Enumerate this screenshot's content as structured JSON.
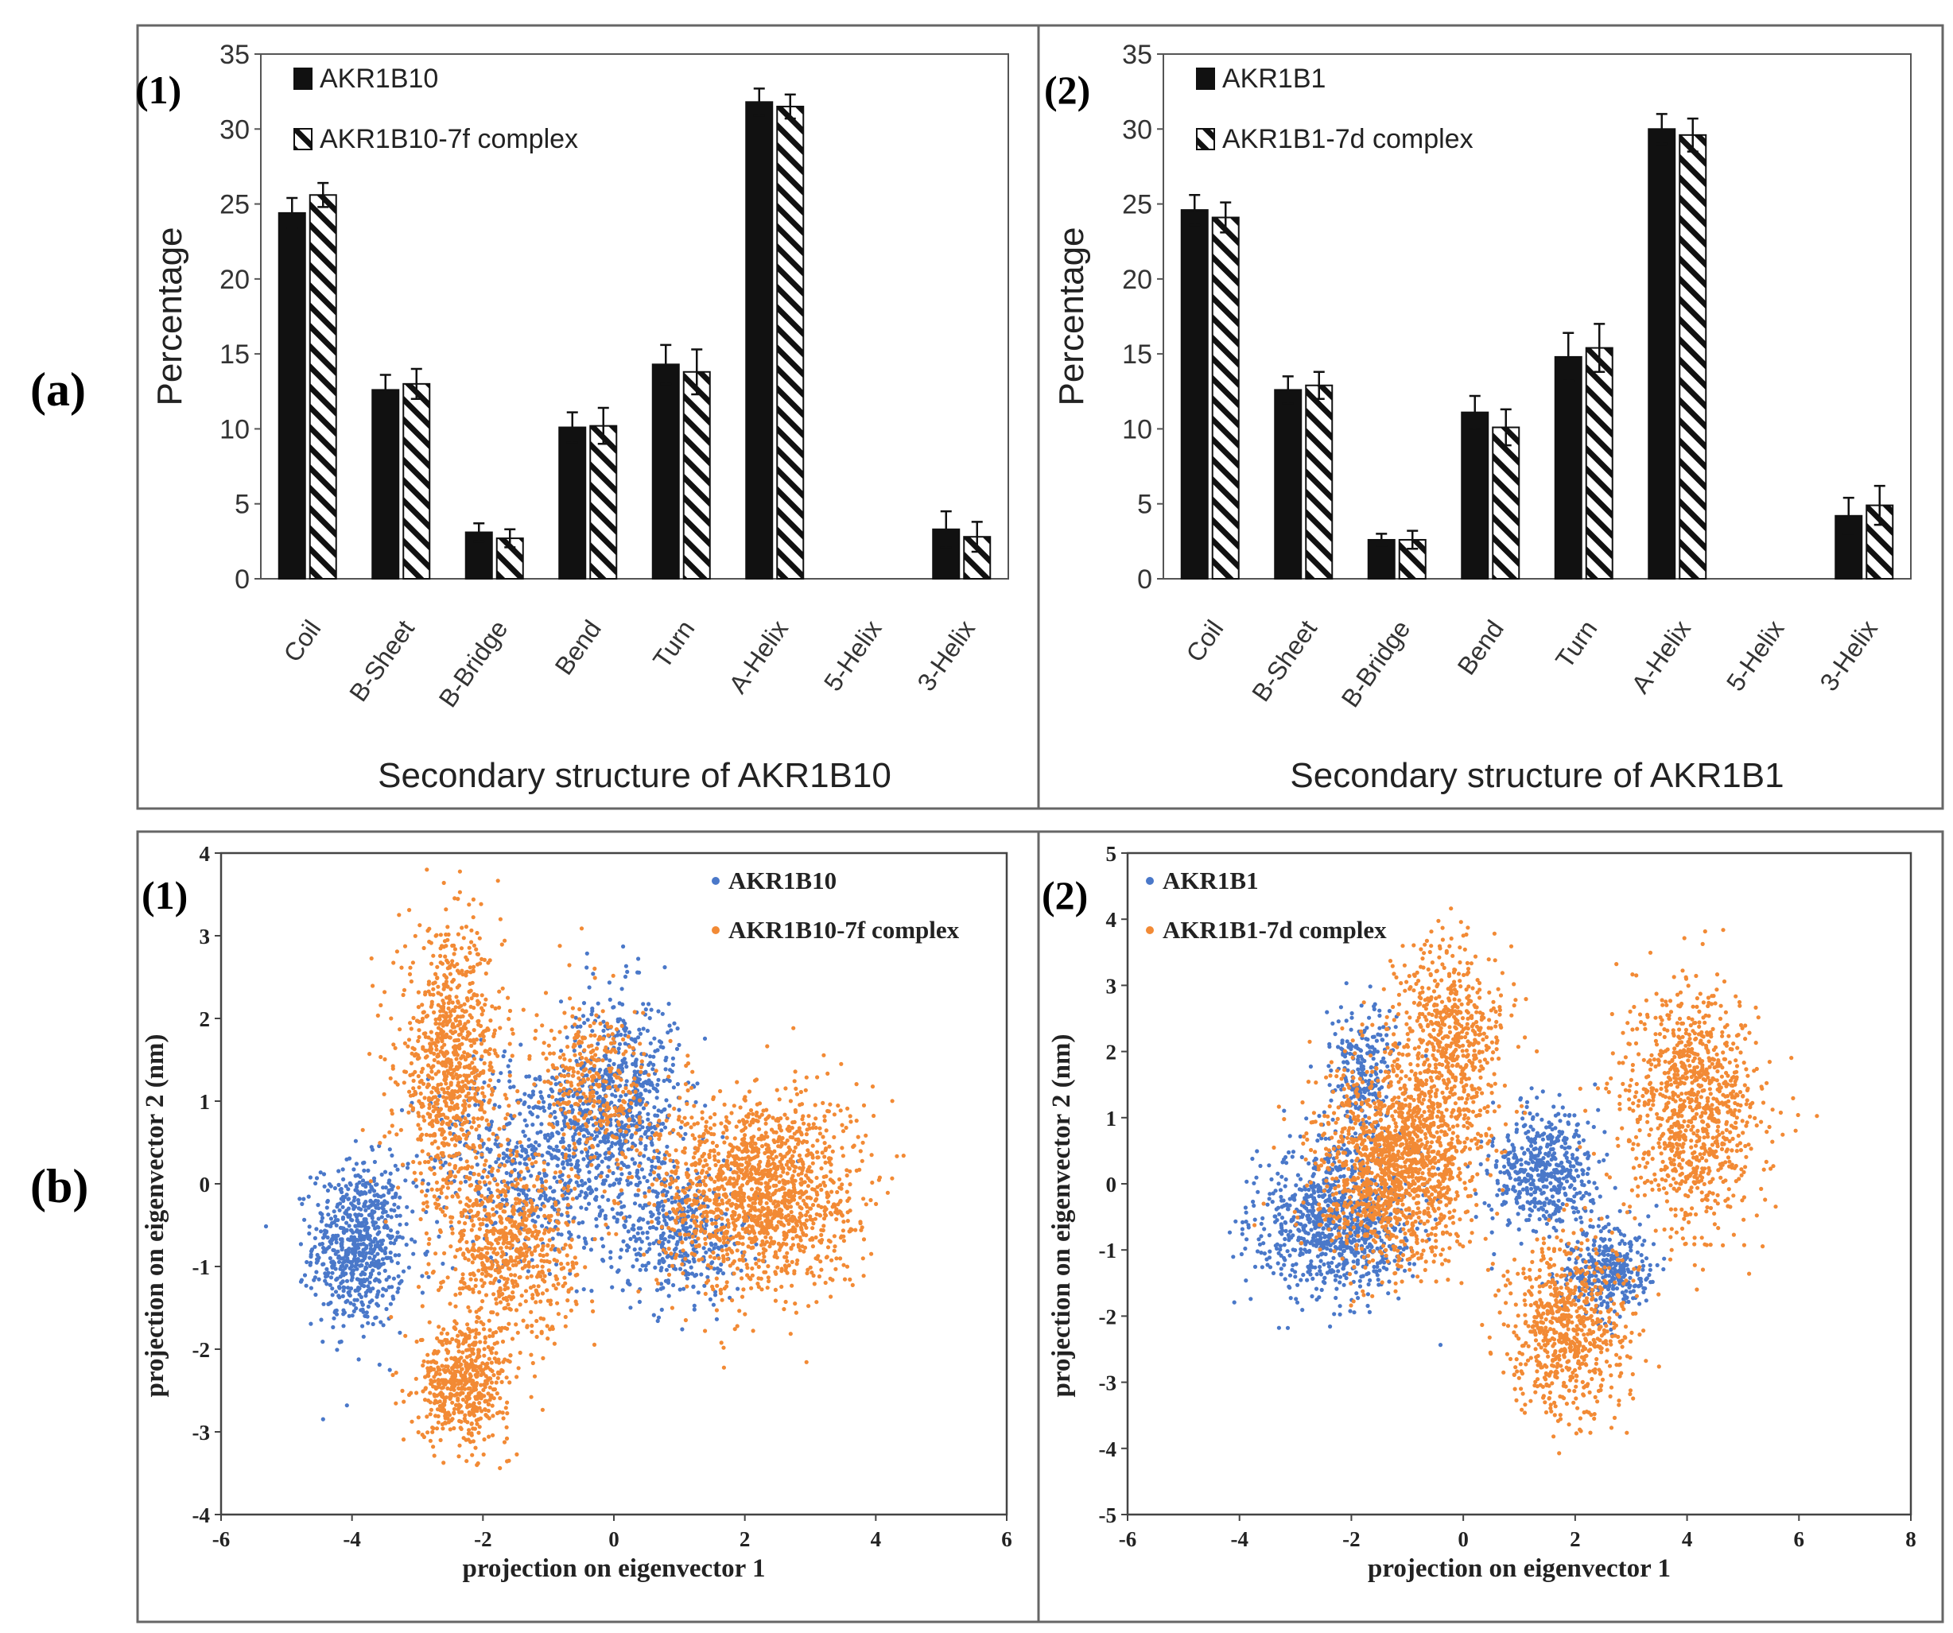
{
  "figure": {
    "row_a_label": "(a)",
    "row_b_label": "(b)"
  },
  "colors": {
    "bar_fill": "#111111",
    "hatch_stroke": "#111111",
    "frame": "#666666",
    "axis": "#444444",
    "apo_points": "#4a78c9",
    "complex_points": "#f28a35"
  },
  "chart_data": [
    {
      "type": "bar",
      "panel": "(1)",
      "title": "",
      "xlabel": "Secondary structure of AKR1B10",
      "ylabel": "Percentage",
      "ylim": [
        0,
        35
      ],
      "yticks": [
        "0",
        "5",
        "10",
        "15",
        "20",
        "25",
        "30",
        "35"
      ],
      "categories": [
        "Coil",
        "B-Sheet",
        "B-Bridge",
        "Bend",
        "Turn",
        "A-Helix",
        "5-Helix",
        "3-Helix"
      ],
      "series": [
        {
          "name": "AKR1B10",
          "style": "solid",
          "values": [
            24.4,
            12.6,
            3.1,
            10.1,
            14.3,
            31.8,
            0,
            3.3
          ],
          "errors": [
            1.0,
            1.0,
            0.6,
            1.0,
            1.3,
            0.9,
            0,
            1.2
          ]
        },
        {
          "name": "AKR1B10-7f complex",
          "style": "hatched",
          "values": [
            25.6,
            13.0,
            2.7,
            10.2,
            13.8,
            31.5,
            0,
            2.8
          ],
          "errors": [
            0.8,
            1.0,
            0.6,
            1.2,
            1.5,
            0.8,
            0,
            1.0
          ]
        }
      ]
    },
    {
      "type": "bar",
      "panel": "(2)",
      "title": "",
      "xlabel": "Secondary structure of AKR1B1",
      "ylabel": "Percentage",
      "ylim": [
        0,
        35
      ],
      "yticks": [
        "0",
        "5",
        "10",
        "15",
        "20",
        "25",
        "30",
        "35"
      ],
      "categories": [
        "Coil",
        "B-Sheet",
        "B-Bridge",
        "Bend",
        "Turn",
        "A-Helix",
        "5-Helix",
        "3-Helix"
      ],
      "series": [
        {
          "name": "AKR1B1",
          "style": "solid",
          "values": [
            24.6,
            12.6,
            2.6,
            11.1,
            14.8,
            30.0,
            0,
            4.2
          ],
          "errors": [
            1.0,
            0.9,
            0.4,
            1.1,
            1.6,
            1.0,
            0,
            1.2
          ]
        },
        {
          "name": "AKR1B1-7d complex",
          "style": "hatched",
          "values": [
            24.1,
            12.9,
            2.6,
            10.1,
            15.4,
            29.6,
            0,
            4.9
          ],
          "errors": [
            1.0,
            0.9,
            0.6,
            1.2,
            1.6,
            1.1,
            0,
            1.3
          ]
        }
      ]
    },
    {
      "type": "scatter",
      "panel": "(1)",
      "title": "",
      "xlabel": "projection on eigenvector 1",
      "ylabel": "projection on eigenvector 2 (nm)",
      "xlim": [
        -6,
        6
      ],
      "ylim": [
        -4,
        4
      ],
      "xticks": [
        "-6",
        "-4",
        "-2",
        "0",
        "2",
        "4",
        "6"
      ],
      "yticks": [
        "-4",
        "-3",
        "-2",
        "-1",
        "0",
        "1",
        "2",
        "3",
        "4"
      ],
      "series": [
        {
          "name": "AKR1B10",
          "color": "#4a78c9",
          "clusters": [
            {
              "cx": -3.9,
              "cy": -0.75,
              "sx": 0.35,
              "sy": 0.5,
              "n": 700
            },
            {
              "cx": -1.2,
              "cy": 0.3,
              "sx": 0.8,
              "sy": 0.6,
              "n": 600
            },
            {
              "cx": 0.1,
              "cy": 1.0,
              "sx": 0.45,
              "sy": 0.65,
              "n": 650
            },
            {
              "cx": 1.0,
              "cy": -0.6,
              "sx": 0.5,
              "sy": 0.4,
              "n": 400
            }
          ]
        },
        {
          "name": "AKR1B10-7f complex",
          "color": "#f28a35",
          "clusters": [
            {
              "cx": -2.5,
              "cy": 1.4,
              "sx": 0.4,
              "sy": 0.8,
              "n": 900
            },
            {
              "cx": -1.6,
              "cy": -0.8,
              "sx": 0.5,
              "sy": 0.55,
              "n": 700
            },
            {
              "cx": -2.3,
              "cy": -2.4,
              "sx": 0.35,
              "sy": 0.35,
              "n": 550
            },
            {
              "cx": 2.2,
              "cy": -0.1,
              "sx": 0.75,
              "sy": 0.6,
              "n": 1500
            },
            {
              "cx": -0.3,
              "cy": 1.2,
              "sx": 0.45,
              "sy": 0.5,
              "n": 350
            }
          ]
        }
      ]
    },
    {
      "type": "scatter",
      "panel": "(2)",
      "title": "",
      "xlabel": "projection on eigenvector 1",
      "ylabel": "projection on eigenvector 2 (nm)",
      "xlim": [
        -6,
        8
      ],
      "ylim": [
        -5,
        5
      ],
      "xticks": [
        "-6",
        "-4",
        "-2",
        "0",
        "2",
        "4",
        "6",
        "8"
      ],
      "yticks": [
        "-5",
        "-4",
        "-3",
        "-2",
        "-1",
        "0",
        "1",
        "2",
        "3",
        "4",
        "5"
      ],
      "series": [
        {
          "name": "AKR1B1",
          "color": "#4a78c9",
          "clusters": [
            {
              "cx": -2.3,
              "cy": -0.6,
              "sx": 0.7,
              "sy": 0.55,
              "n": 900
            },
            {
              "cx": -1.8,
              "cy": 1.7,
              "sx": 0.3,
              "sy": 0.5,
              "n": 250
            },
            {
              "cx": 1.4,
              "cy": 0.2,
              "sx": 0.45,
              "sy": 0.5,
              "n": 500
            },
            {
              "cx": 2.6,
              "cy": -1.3,
              "sx": 0.4,
              "sy": 0.35,
              "n": 350
            }
          ]
        },
        {
          "name": "AKR1B1-7d complex",
          "color": "#f28a35",
          "clusters": [
            {
              "cx": -1.2,
              "cy": 0.3,
              "sx": 0.7,
              "sy": 0.75,
              "n": 1400
            },
            {
              "cx": -0.3,
              "cy": 2.2,
              "sx": 0.5,
              "sy": 0.7,
              "n": 600
            },
            {
              "cx": 1.9,
              "cy": -2.2,
              "sx": 0.55,
              "sy": 0.7,
              "n": 700
            },
            {
              "cx": 4.1,
              "cy": 1.1,
              "sx": 0.6,
              "sy": 0.9,
              "n": 1000
            }
          ]
        }
      ]
    }
  ]
}
